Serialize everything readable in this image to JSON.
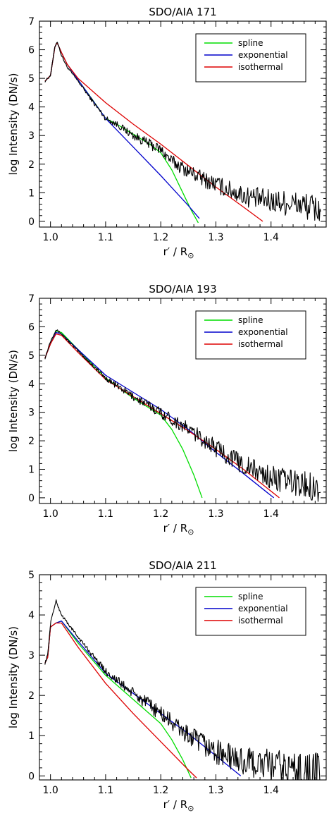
{
  "chart_data": [
    {
      "type": "line",
      "title": "SDO/AIA 171",
      "xlabel": "r′ / R",
      "xlabel_sub": "⊙",
      "ylabel": "log Intensity (DN/s)",
      "xlim": [
        0.98,
        1.5
      ],
      "ylim": [
        -0.2,
        7
      ],
      "xticks": [
        1.0,
        1.1,
        1.2,
        1.3,
        1.4
      ],
      "xtick_labels": [
        "1.0",
        "1.1",
        "1.2",
        "1.3",
        "1.4"
      ],
      "yticks": [
        0,
        1,
        2,
        3,
        4,
        5,
        6,
        7
      ],
      "ytick_labels": [
        "0",
        "1",
        "2",
        "3",
        "4",
        "5",
        "6",
        "7"
      ],
      "legend": {
        "position": "top-right",
        "entries": [
          "spline",
          "exponential",
          "isothermal"
        ]
      },
      "grid": false,
      "series": [
        {
          "name": "spline",
          "color": "#00dd00",
          "x": [
            0.99,
            1.0,
            1.008,
            1.012,
            1.02,
            1.03,
            1.05,
            1.08,
            1.1,
            1.12,
            1.15,
            1.18,
            1.2,
            1.22,
            1.24,
            1.255,
            1.268
          ],
          "y": [
            4.9,
            5.1,
            6.1,
            6.25,
            5.9,
            5.5,
            4.95,
            4.15,
            3.6,
            3.4,
            3.05,
            2.7,
            2.4,
            1.8,
            1.0,
            0.4,
            -0.05
          ]
        },
        {
          "name": "exponential",
          "color": "#0000cc",
          "x": [
            0.99,
            1.0,
            1.008,
            1.012,
            1.02,
            1.03,
            1.05,
            1.1,
            1.15,
            1.2,
            1.25,
            1.27
          ],
          "y": [
            4.9,
            5.1,
            6.1,
            6.25,
            5.9,
            5.5,
            4.95,
            3.6,
            2.6,
            1.6,
            0.55,
            0.1
          ]
        },
        {
          "name": "isothermal",
          "color": "#dd0000",
          "x": [
            0.99,
            1.0,
            1.008,
            1.012,
            1.02,
            1.03,
            1.05,
            1.1,
            1.15,
            1.2,
            1.25,
            1.3,
            1.35,
            1.385
          ],
          "y": [
            4.9,
            5.1,
            6.1,
            6.25,
            5.9,
            5.5,
            5.0,
            4.15,
            3.4,
            2.7,
            1.95,
            1.2,
            0.5,
            0.0
          ]
        },
        {
          "name": "",
          "color": "#000000",
          "x": [
            0.99,
            1.0,
            1.008,
            1.012,
            1.02,
            1.03,
            1.05,
            1.08,
            1.1,
            1.12,
            1.15,
            1.18,
            1.2,
            1.22,
            1.25,
            1.28,
            1.3,
            1.33,
            1.36,
            1.4,
            1.43,
            1.46,
            1.49
          ],
          "y": [
            4.9,
            5.1,
            6.1,
            6.3,
            5.8,
            5.4,
            4.9,
            4.1,
            3.6,
            3.4,
            3.0,
            2.7,
            2.5,
            2.1,
            1.75,
            1.45,
            1.3,
            1.05,
            0.85,
            0.7,
            0.65,
            0.55,
            0.4
          ],
          "noise": 0.3
        }
      ]
    },
    {
      "type": "line",
      "title": "SDO/AIA 193",
      "xlabel": "r′ / R",
      "xlabel_sub": "⊙",
      "ylabel": "log Intensity (DN/s)",
      "xlim": [
        0.98,
        1.5
      ],
      "ylim": [
        -0.2,
        7
      ],
      "xticks": [
        1.0,
        1.1,
        1.2,
        1.3,
        1.4
      ],
      "xtick_labels": [
        "1.0",
        "1.1",
        "1.2",
        "1.3",
        "1.4"
      ],
      "yticks": [
        0,
        1,
        2,
        3,
        4,
        5,
        6,
        7
      ],
      "ytick_labels": [
        "0",
        "1",
        "2",
        "3",
        "4",
        "5",
        "6",
        "7"
      ],
      "legend": {
        "position": "top-right",
        "entries": [
          "spline",
          "exponential",
          "isothermal"
        ]
      },
      "grid": false,
      "series": [
        {
          "name": "spline",
          "color": "#00dd00",
          "x": [
            0.99,
            1.0,
            1.01,
            1.02,
            1.05,
            1.1,
            1.15,
            1.2,
            1.22,
            1.24,
            1.26,
            1.275
          ],
          "y": [
            4.9,
            5.4,
            5.85,
            5.8,
            5.2,
            4.2,
            3.5,
            2.9,
            2.4,
            1.7,
            0.8,
            0.0
          ]
        },
        {
          "name": "exponential",
          "color": "#0000cc",
          "x": [
            0.99,
            1.0,
            1.01,
            1.02,
            1.05,
            1.1,
            1.15,
            1.2,
            1.25,
            1.3,
            1.35,
            1.405
          ],
          "y": [
            4.9,
            5.4,
            5.8,
            5.75,
            5.2,
            4.3,
            3.7,
            3.1,
            2.4,
            1.6,
            0.85,
            0.0
          ]
        },
        {
          "name": "isothermal",
          "color": "#dd0000",
          "x": [
            0.99,
            1.0,
            1.01,
            1.02,
            1.05,
            1.1,
            1.15,
            1.2,
            1.25,
            1.3,
            1.35,
            1.415
          ],
          "y": [
            4.9,
            5.4,
            5.75,
            5.7,
            5.1,
            4.15,
            3.55,
            2.95,
            2.35,
            1.7,
            1.0,
            0.0
          ]
        },
        {
          "name": "",
          "color": "#000000",
          "x": [
            0.99,
            1.0,
            1.01,
            1.02,
            1.05,
            1.1,
            1.15,
            1.2,
            1.25,
            1.3,
            1.35,
            1.4,
            1.45,
            1.49
          ],
          "y": [
            4.9,
            5.5,
            5.9,
            5.75,
            5.15,
            4.2,
            3.55,
            3.0,
            2.4,
            1.75,
            1.15,
            0.7,
            0.5,
            0.35
          ],
          "noise": 0.3
        }
      ]
    },
    {
      "type": "line",
      "title": "SDO/AIA 211",
      "xlabel": "r′ / R",
      "xlabel_sub": "⊙",
      "ylabel": "log Intensity (DN/s)",
      "xlim": [
        0.98,
        1.5
      ],
      "ylim": [
        -0.1,
        5
      ],
      "xticks": [
        1.0,
        1.1,
        1.2,
        1.3,
        1.4
      ],
      "xtick_labels": [
        "1.0",
        "1.1",
        "1.2",
        "1.3",
        "1.4"
      ],
      "yticks": [
        0,
        1,
        2,
        3,
        4,
        5
      ],
      "ytick_labels": [
        "0",
        "1",
        "2",
        "3",
        "4",
        "5"
      ],
      "legend": {
        "position": "top-right",
        "entries": [
          "spline",
          "exponential",
          "isothermal"
        ]
      },
      "grid": false,
      "series": [
        {
          "name": "spline",
          "color": "#00dd00",
          "x": [
            0.99,
            0.995,
            1.0,
            1.01,
            1.02,
            1.05,
            1.1,
            1.15,
            1.2,
            1.22,
            1.24,
            1.255
          ],
          "y": [
            2.8,
            2.95,
            3.7,
            3.8,
            3.85,
            3.3,
            2.5,
            1.9,
            1.3,
            0.9,
            0.4,
            -0.05
          ]
        },
        {
          "name": "exponential",
          "color": "#0000cc",
          "x": [
            0.99,
            0.995,
            1.0,
            1.01,
            1.02,
            1.05,
            1.1,
            1.15,
            1.2,
            1.25,
            1.3,
            1.345
          ],
          "y": [
            2.8,
            2.95,
            3.7,
            3.8,
            3.85,
            3.35,
            2.55,
            2.05,
            1.55,
            1.05,
            0.5,
            0.0
          ]
        },
        {
          "name": "isothermal",
          "color": "#dd0000",
          "x": [
            0.99,
            0.995,
            1.0,
            1.01,
            1.02,
            1.05,
            1.1,
            1.15,
            1.2,
            1.25,
            1.265
          ],
          "y": [
            2.8,
            2.95,
            3.7,
            3.8,
            3.8,
            3.2,
            2.3,
            1.55,
            0.85,
            0.15,
            -0.05
          ]
        },
        {
          "name": "",
          "color": "#000000",
          "x": [
            0.99,
            0.995,
            1.0,
            1.01,
            1.02,
            1.05,
            1.1,
            1.15,
            1.2,
            1.25,
            1.3,
            1.35,
            1.4,
            1.45,
            1.49
          ],
          "y": [
            2.8,
            3.0,
            3.8,
            4.35,
            4.0,
            3.45,
            2.6,
            2.05,
            1.55,
            1.0,
            0.6,
            0.35,
            0.25,
            0.15,
            0.1
          ],
          "noise": 0.3
        }
      ]
    }
  ]
}
